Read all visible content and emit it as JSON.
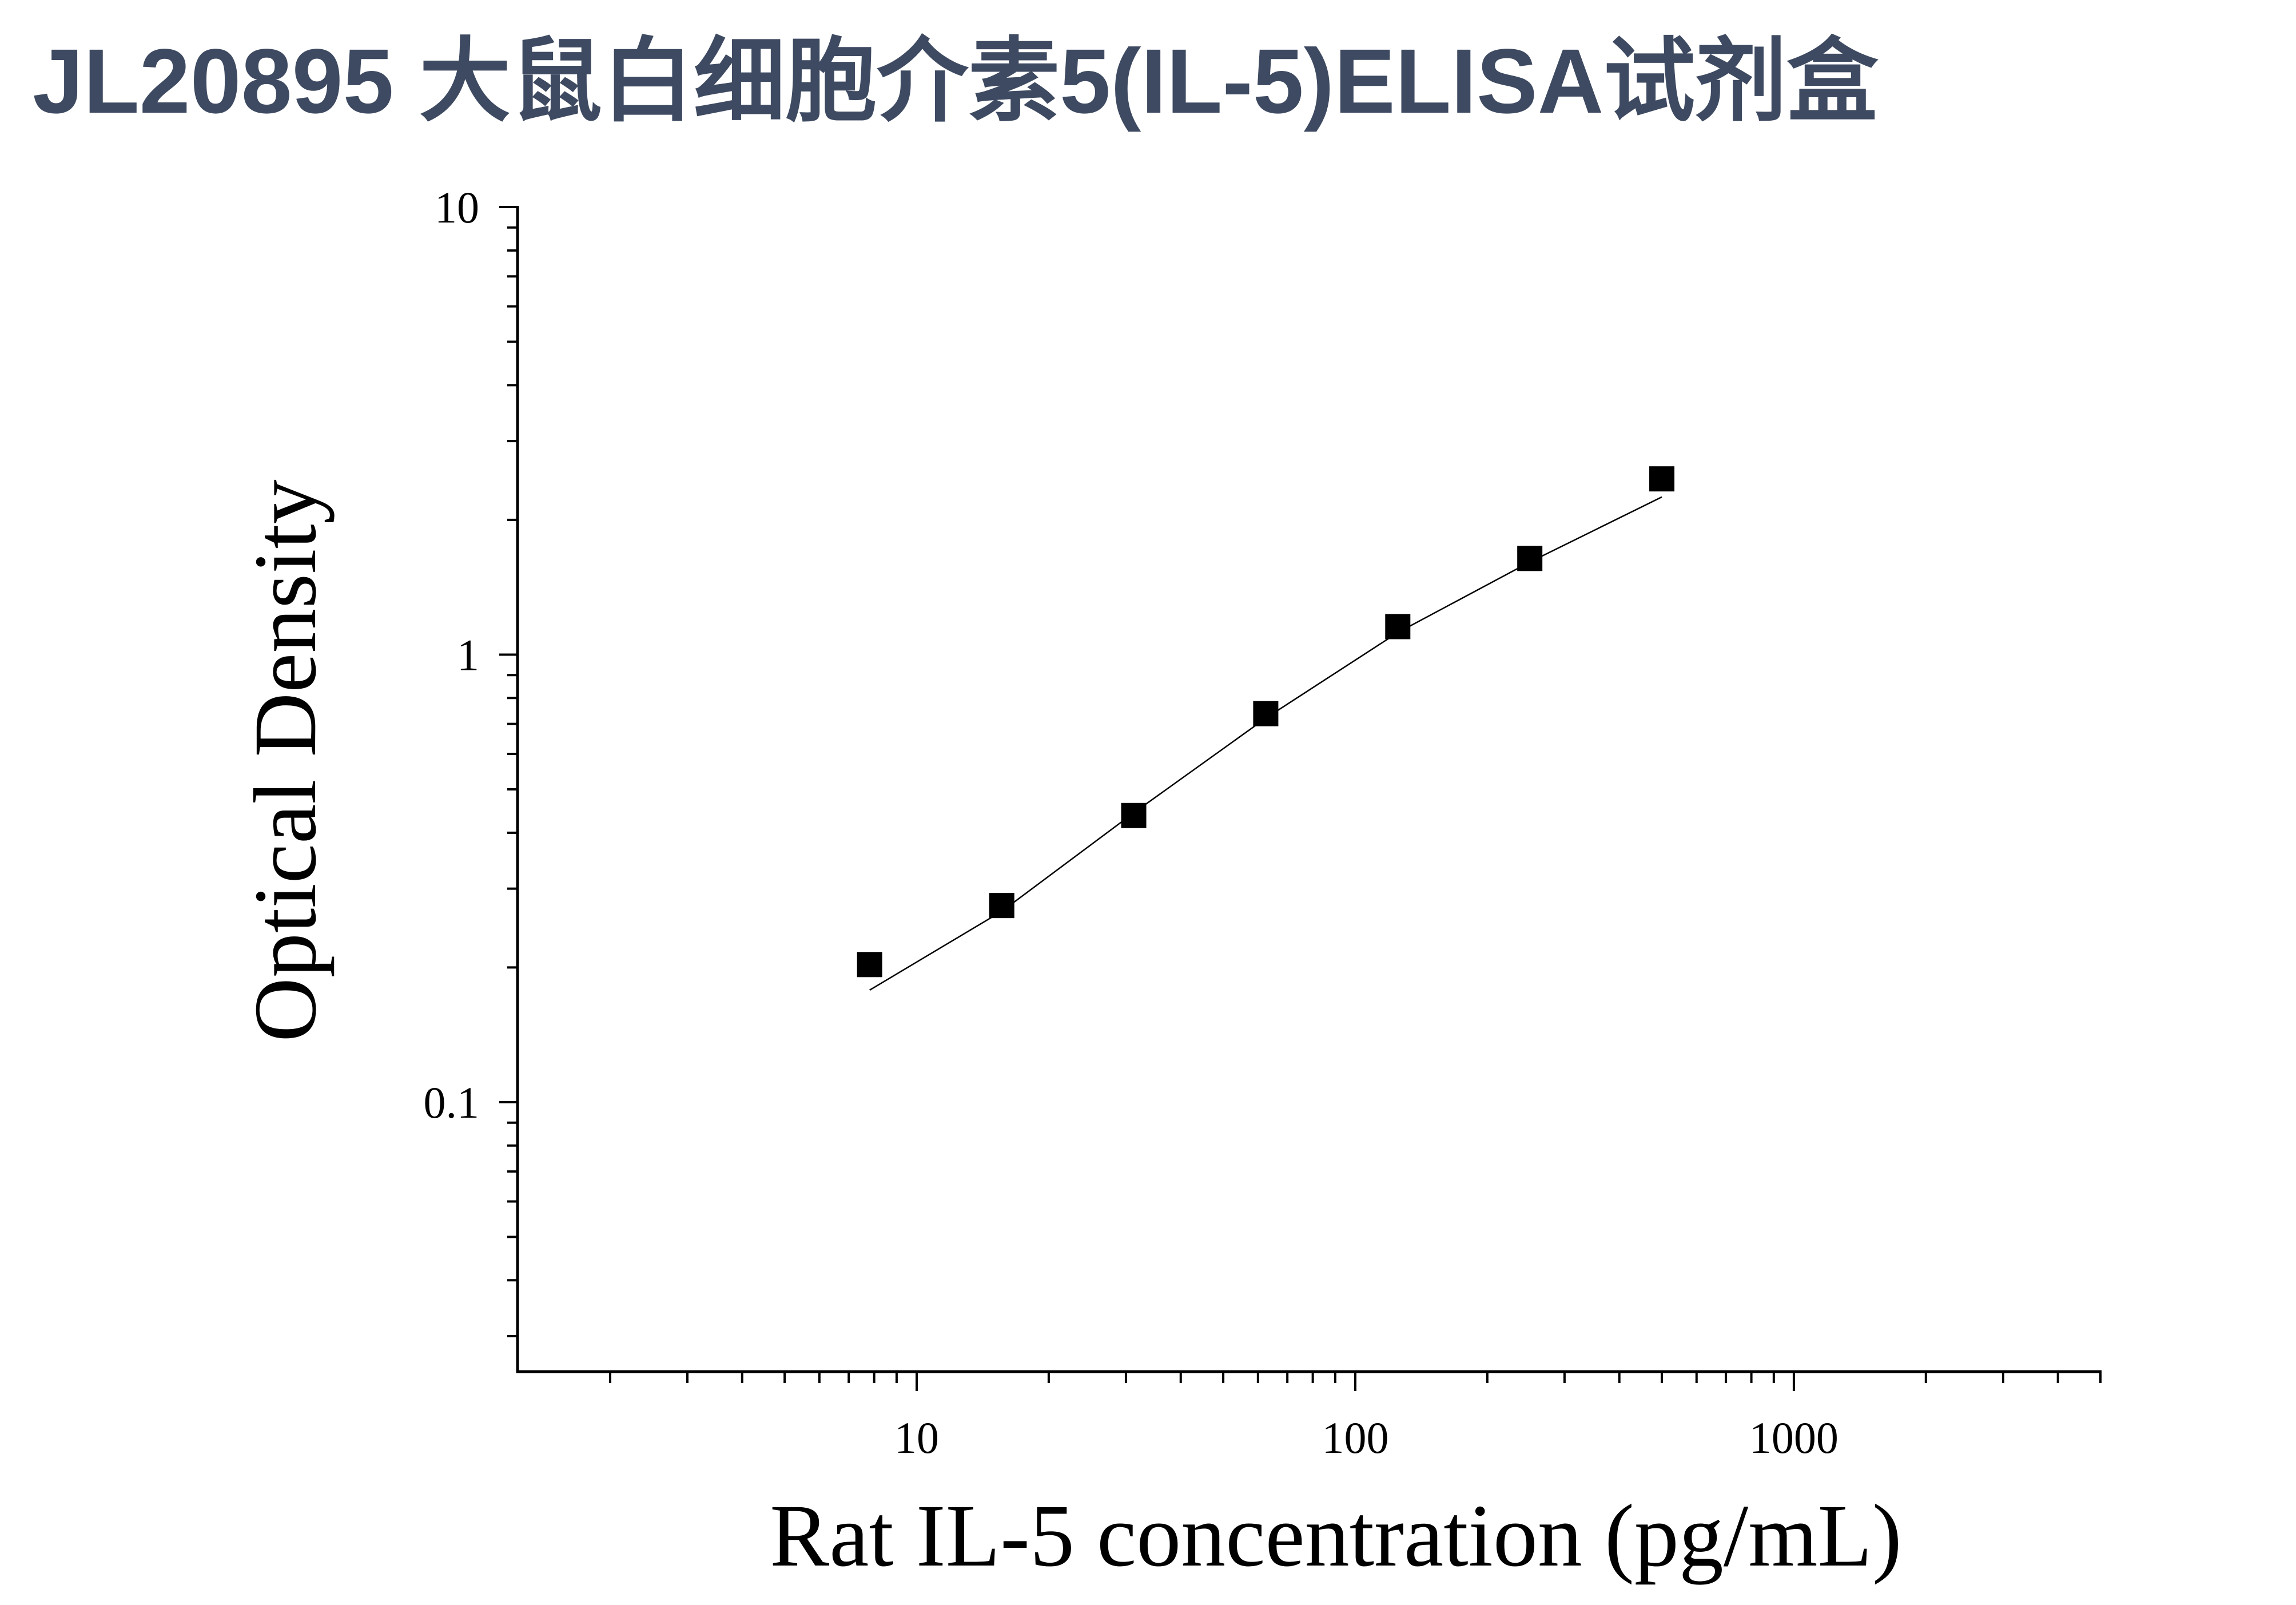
{
  "chart_data": {
    "type": "scatter",
    "title": "JL20895 大鼠白细胞介素5(IL-5)ELISA试剂盒",
    "xlabel": "Rat IL-5 concentration (pg/mL)",
    "ylabel": "Optical Density",
    "x_axis": {
      "scale": "log",
      "min": 1.23,
      "max": 5000,
      "ticks": [
        10,
        100,
        1000
      ],
      "tick_labels": [
        "10",
        "100",
        "1000"
      ]
    },
    "y_axis": {
      "scale": "log",
      "min": 0.025,
      "max": 10,
      "ticks": [
        0.1,
        1,
        10
      ],
      "tick_labels": [
        "0.1",
        "1",
        "10"
      ]
    },
    "grid": false,
    "legend": false,
    "colors": {
      "title": "#3e4a61",
      "marks": "#000000"
    },
    "series": [
      {
        "type": "scatter",
        "x": [
          7.81,
          15.63,
          31.25,
          62.5,
          125,
          250,
          500
        ],
        "y": [
          0.203,
          0.275,
          0.437,
          0.738,
          1.155,
          1.64,
          2.47
        ]
      },
      {
        "type": "line",
        "x": [
          7.81,
          15.63,
          31.25,
          62.5,
          125,
          250,
          500
        ],
        "y": [
          0.178,
          0.267,
          0.443,
          0.721,
          1.12,
          1.61,
          2.25
        ]
      }
    ]
  }
}
